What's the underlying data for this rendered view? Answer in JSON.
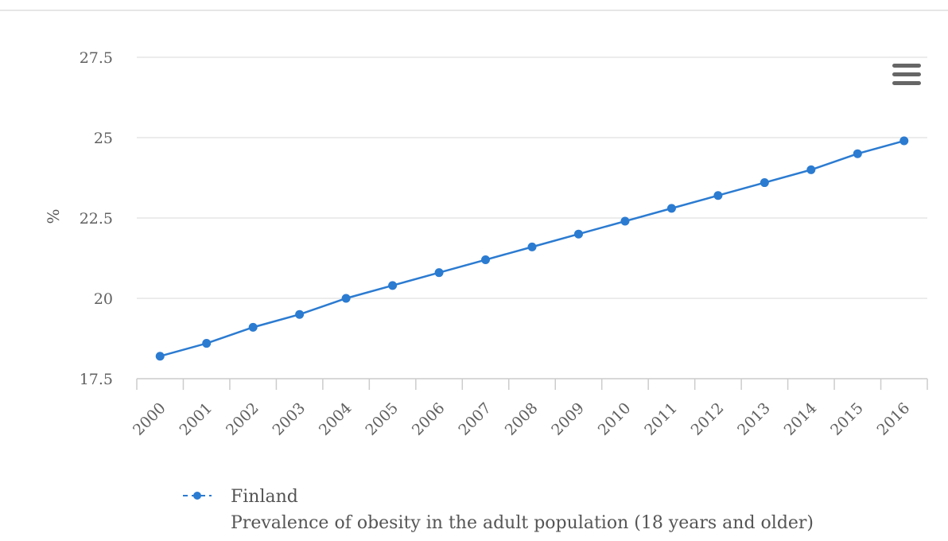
{
  "chart_data": {
    "type": "line",
    "title": "",
    "xlabel": "",
    "ylabel": "%",
    "ylim": [
      17.5,
      27.5
    ],
    "yticks": [
      "17.5",
      "20",
      "22.5",
      "25",
      "27.5"
    ],
    "categories": [
      "2000",
      "2001",
      "2002",
      "2003",
      "2004",
      "2005",
      "2006",
      "2007",
      "2008",
      "2009",
      "2010",
      "2011",
      "2012",
      "2013",
      "2014",
      "2015",
      "2016"
    ],
    "series": [
      {
        "name": "Finland",
        "subtitle": "Prevalence of obesity in the adult population (18 years and older)",
        "color": "#2b7bd1",
        "values": [
          18.2,
          18.6,
          19.1,
          19.5,
          20.0,
          20.4,
          20.8,
          21.2,
          21.6,
          22.0,
          22.4,
          22.8,
          23.2,
          23.6,
          24.0,
          24.5,
          24.9
        ]
      }
    ],
    "grid": true,
    "legend_position": "bottom-left"
  },
  "menu": {
    "icon": "hamburger-menu-icon"
  }
}
